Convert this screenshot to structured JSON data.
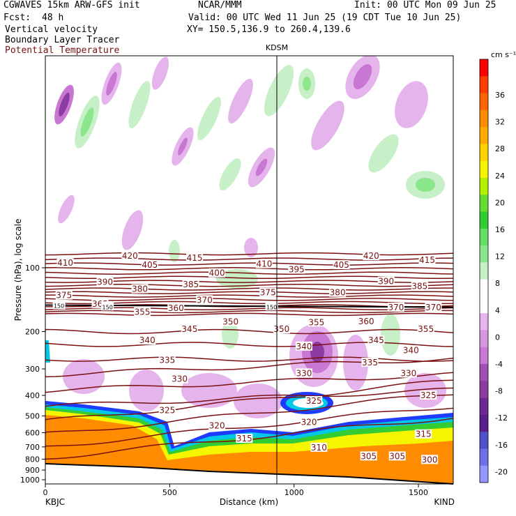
{
  "header": {
    "model": "CGWAVES 15km ARW-GFS init",
    "org": "NCAR/MMM",
    "init": "Init: 00 UTC Mon 09 Jun 25",
    "fcst_label": "Fcst:",
    "fcst_value": "48 h",
    "valid": "Valid: 00 UTC Wed 11 Jun 25 (19 CDT Tue 10 Jun 25)",
    "field1": "Vertical velocity",
    "field2": "Boundary Layer Tracer",
    "field3": "Potential Temperature",
    "xy": "XY= 150.5,136.9 to 260.4,139.6"
  },
  "station_marker": "KDSM",
  "endpoints": {
    "left": "KBJC",
    "right": "KIND"
  },
  "colors": {
    "theta": "#7a1010",
    "tracer_orange": "#ff8c00",
    "tracer_yellow": "#f5f500",
    "tracer_green": "#33cc33",
    "tracer_cyan": "#00c8e6",
    "tracer_blue": "#1e3cff",
    "down_light": "#e6b4ec",
    "down_mid": "#c878d2",
    "down_dark": "#8c3ca0",
    "up_light": "#c8f0c8",
    "up_mid": "#8ce68c",
    "terrain_fill": "#ff8c00"
  },
  "chart_data": {
    "type": "heatmap",
    "xlabel": "Distance (km)",
    "ylabel": "Pressure (hPa), log scale",
    "x_ticks": [
      0,
      500,
      1000,
      1500
    ],
    "xlim": [
      0,
      1640
    ],
    "y_ticks": [
      100,
      200,
      300,
      400,
      500,
      600,
      700,
      800,
      900,
      1000
    ],
    "y_scale": "log",
    "colorbar": {
      "unit": "cm s⁻¹",
      "levels": [
        36,
        32,
        28,
        24,
        20,
        16,
        12,
        8,
        4,
        0,
        -4,
        -8,
        -12,
        -16,
        -20
      ],
      "colors": [
        "#ff0000",
        "#ff3c00",
        "#ff6400",
        "#ff8c00",
        "#ffaa00",
        "#ffd200",
        "#f5f500",
        "#b4f000",
        "#66dd33",
        "#33cc33",
        "#66dd66",
        "#8ce68c",
        "#c8f0c8",
        "#ffffff",
        "#ffffff",
        "#e6b4ec",
        "#d496dc",
        "#c878d2",
        "#a050b4",
        "#8c3ca0",
        "#6e2896",
        "#5a1e8c",
        "#5050c8",
        "#6e6ee6",
        "#9696ff"
      ]
    },
    "theta_labels": [
      {
        "v": "420",
        "x": 340,
        "p": 88
      },
      {
        "v": "415",
        "x": 600,
        "p": 90
      },
      {
        "v": "410",
        "x": 80,
        "p": 95
      },
      {
        "v": "405",
        "x": 420,
        "p": 97
      },
      {
        "v": "410",
        "x": 880,
        "p": 96
      },
      {
        "v": "395",
        "x": 1010,
        "p": 102
      },
      {
        "v": "405",
        "x": 1190,
        "p": 97
      },
      {
        "v": "420",
        "x": 1310,
        "p": 88
      },
      {
        "v": "415",
        "x": 1535,
        "p": 92
      },
      {
        "v": "400",
        "x": 690,
        "p": 106
      },
      {
        "v": "390",
        "x": 240,
        "p": 117
      },
      {
        "v": "385",
        "x": 585,
        "p": 120
      },
      {
        "v": "390",
        "x": 1370,
        "p": 116
      },
      {
        "v": "385",
        "x": 1505,
        "p": 122
      },
      {
        "v": "380",
        "x": 380,
        "p": 126
      },
      {
        "v": "380",
        "x": 1175,
        "p": 131
      },
      {
        "v": "375",
        "x": 75,
        "p": 135
      },
      {
        "v": "370",
        "x": 640,
        "p": 142
      },
      {
        "v": "375",
        "x": 895,
        "p": 131
      },
      {
        "v": "365",
        "x": 220,
        "p": 148
      },
      {
        "v": "360",
        "x": 525,
        "p": 155
      },
      {
        "v": "355",
        "x": 390,
        "p": 162
      },
      {
        "v": "370",
        "x": 1410,
        "p": 154
      },
      {
        "v": "370",
        "x": 1560,
        "p": 154
      },
      {
        "v": "150",
        "x": 55,
        "p": 150
      },
      {
        "v": "150",
        "x": 250,
        "p": 152
      },
      {
        "v": "150",
        "x": 910,
        "p": 152
      },
      {
        "v": "350",
        "x": 745,
        "p": 180
      },
      {
        "v": "355",
        "x": 1090,
        "p": 181
      },
      {
        "v": "360",
        "x": 1290,
        "p": 179
      },
      {
        "v": "345",
        "x": 580,
        "p": 195
      },
      {
        "v": "350",
        "x": 950,
        "p": 195
      },
      {
        "v": "355",
        "x": 1530,
        "p": 195
      },
      {
        "v": "340",
        "x": 410,
        "p": 220
      },
      {
        "v": "340",
        "x": 1040,
        "p": 235
      },
      {
        "v": "345",
        "x": 1330,
        "p": 220
      },
      {
        "v": "340",
        "x": 1470,
        "p": 245
      },
      {
        "v": "335",
        "x": 490,
        "p": 273
      },
      {
        "v": "335",
        "x": 1305,
        "p": 280
      },
      {
        "v": "330",
        "x": 540,
        "p": 335
      },
      {
        "v": "330",
        "x": 1040,
        "p": 315
      },
      {
        "v": "330",
        "x": 1460,
        "p": 315
      },
      {
        "v": "325",
        "x": 490,
        "p": 470
      },
      {
        "v": "325",
        "x": 1080,
        "p": 425
      },
      {
        "v": "325",
        "x": 1540,
        "p": 400
      },
      {
        "v": "320",
        "x": 690,
        "p": 555
      },
      {
        "v": "320",
        "x": 1060,
        "p": 535
      },
      {
        "v": "315",
        "x": 800,
        "p": 640
      },
      {
        "v": "315",
        "x": 1520,
        "p": 610
      },
      {
        "v": "310",
        "x": 1100,
        "p": 705
      },
      {
        "v": "305",
        "x": 1300,
        "p": 775
      },
      {
        "v": "305",
        "x": 1415,
        "p": 775
      },
      {
        "v": "300",
        "x": 1545,
        "p": 805
      }
    ]
  }
}
